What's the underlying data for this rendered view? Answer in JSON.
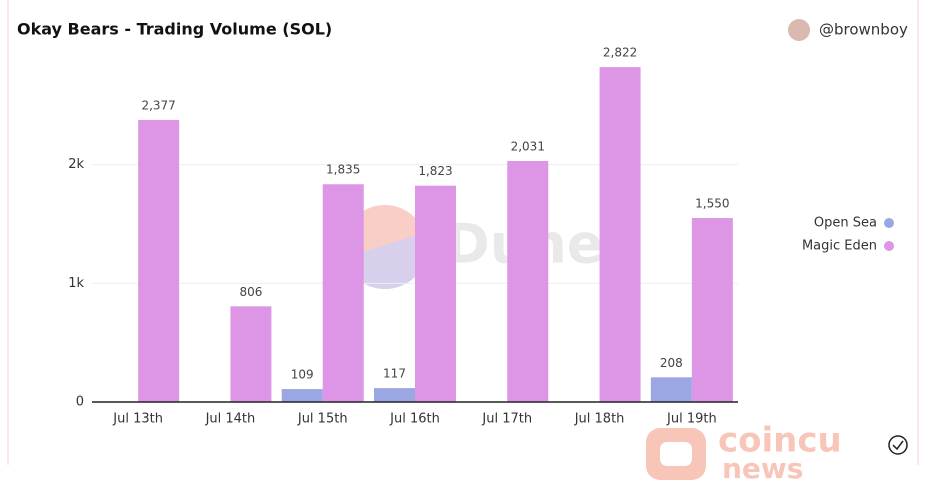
{
  "title": "Okay Bears - Trading Volume (SOL)",
  "author": "@brownboy",
  "watermarks": [
    "Dune",
    "coincu",
    "news"
  ],
  "chart_data": {
    "type": "bar",
    "categories": [
      "Jul 13th",
      "Jul 14th",
      "Jul 15th",
      "Jul 16th",
      "Jul 17th",
      "Jul 18th",
      "Jul 19th"
    ],
    "series": [
      {
        "name": "Open Sea",
        "color": "#9aa7e2",
        "values": [
          null,
          null,
          109,
          117,
          null,
          null,
          208
        ]
      },
      {
        "name": "Magic Eden",
        "color": "#dd95e5",
        "values": [
          2377,
          806,
          1835,
          1823,
          2031,
          2822,
          1550
        ],
        "value_labels": [
          "2,377",
          "806",
          "1,835",
          "1,823",
          "2,031",
          "2,822",
          "1,550"
        ]
      }
    ],
    "ylim": [
      0,
      3000
    ],
    "yticks": [
      0,
      {
        "value": 1000,
        "label": "1k"
      },
      {
        "value": 2000,
        "label": "2k"
      }
    ],
    "grid": true,
    "legend": "right"
  }
}
